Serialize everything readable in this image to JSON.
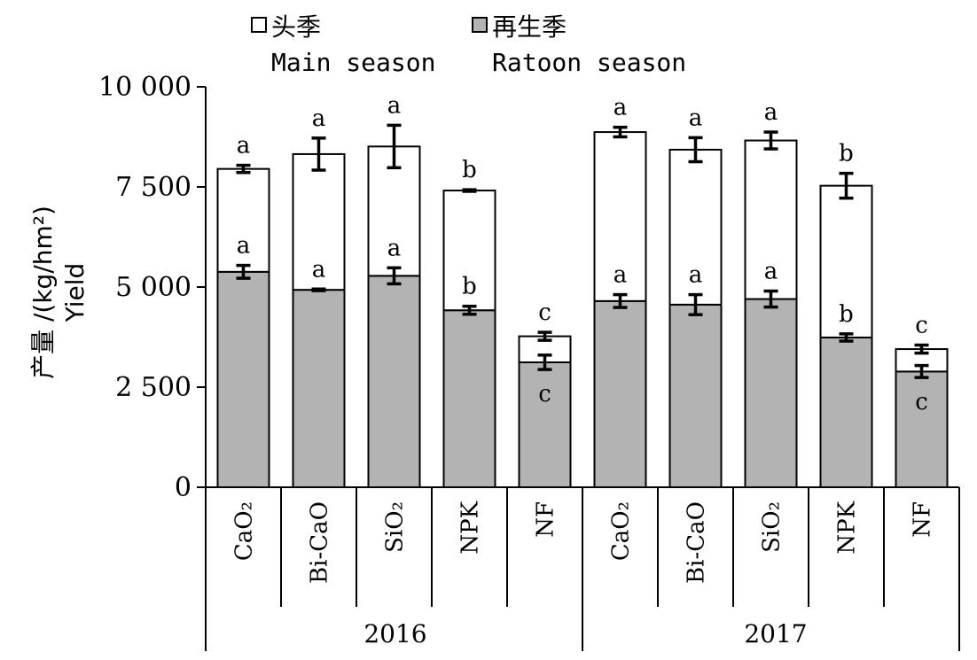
{
  "chart_data": {
    "type": "bar",
    "stacked": true,
    "ylabel": "产量 /(kg/hm²)",
    "ylabel_en": "Yield",
    "ylim": [
      0,
      10000
    ],
    "y_ticks": [
      0,
      2500,
      5000,
      7500,
      10000
    ],
    "y_tick_labels": [
      "0",
      "2 500",
      "5 000",
      "7 500",
      "10 000"
    ],
    "grid": false,
    "legend_position": "top",
    "groups": [
      {
        "label": "2016",
        "categories": [
          "CaO₂",
          "Bi-CaO",
          "SiO₂",
          "NPK",
          "NF"
        ]
      },
      {
        "label": "2017",
        "categories": [
          "CaO₂",
          "Bi-CaO",
          "SiO₂",
          "NPK",
          "NF"
        ]
      }
    ],
    "series": [
      {
        "name": "再生季",
        "name_en": "Ratoon season",
        "color": "#b3b3b3",
        "values": [
          5380,
          4930,
          5280,
          4420,
          3120,
          4650,
          4560,
          4700,
          3740,
          2890
        ],
        "errors": [
          160,
          20,
          200,
          100,
          180,
          160,
          250,
          200,
          90,
          150
        ],
        "letters": [
          "a",
          "a",
          "a",
          "b",
          "c",
          "a",
          "a",
          "a",
          "b",
          "c"
        ]
      },
      {
        "name": "头季",
        "name_en": "Main season",
        "color": "#ffffff",
        "values": [
          2570,
          3390,
          3230,
          2990,
          650,
          4220,
          3870,
          3960,
          3790,
          560
        ],
        "totals": [
          7950,
          8320,
          8510,
          7410,
          3770,
          8870,
          8430,
          8660,
          7530,
          3450
        ],
        "errors": [
          90,
          400,
          530,
          20,
          100,
          120,
          300,
          210,
          310,
          100
        ],
        "letters": [
          "a",
          "a",
          "a",
          "b",
          "c",
          "a",
          "a",
          "a",
          "b",
          "c"
        ]
      }
    ]
  }
}
